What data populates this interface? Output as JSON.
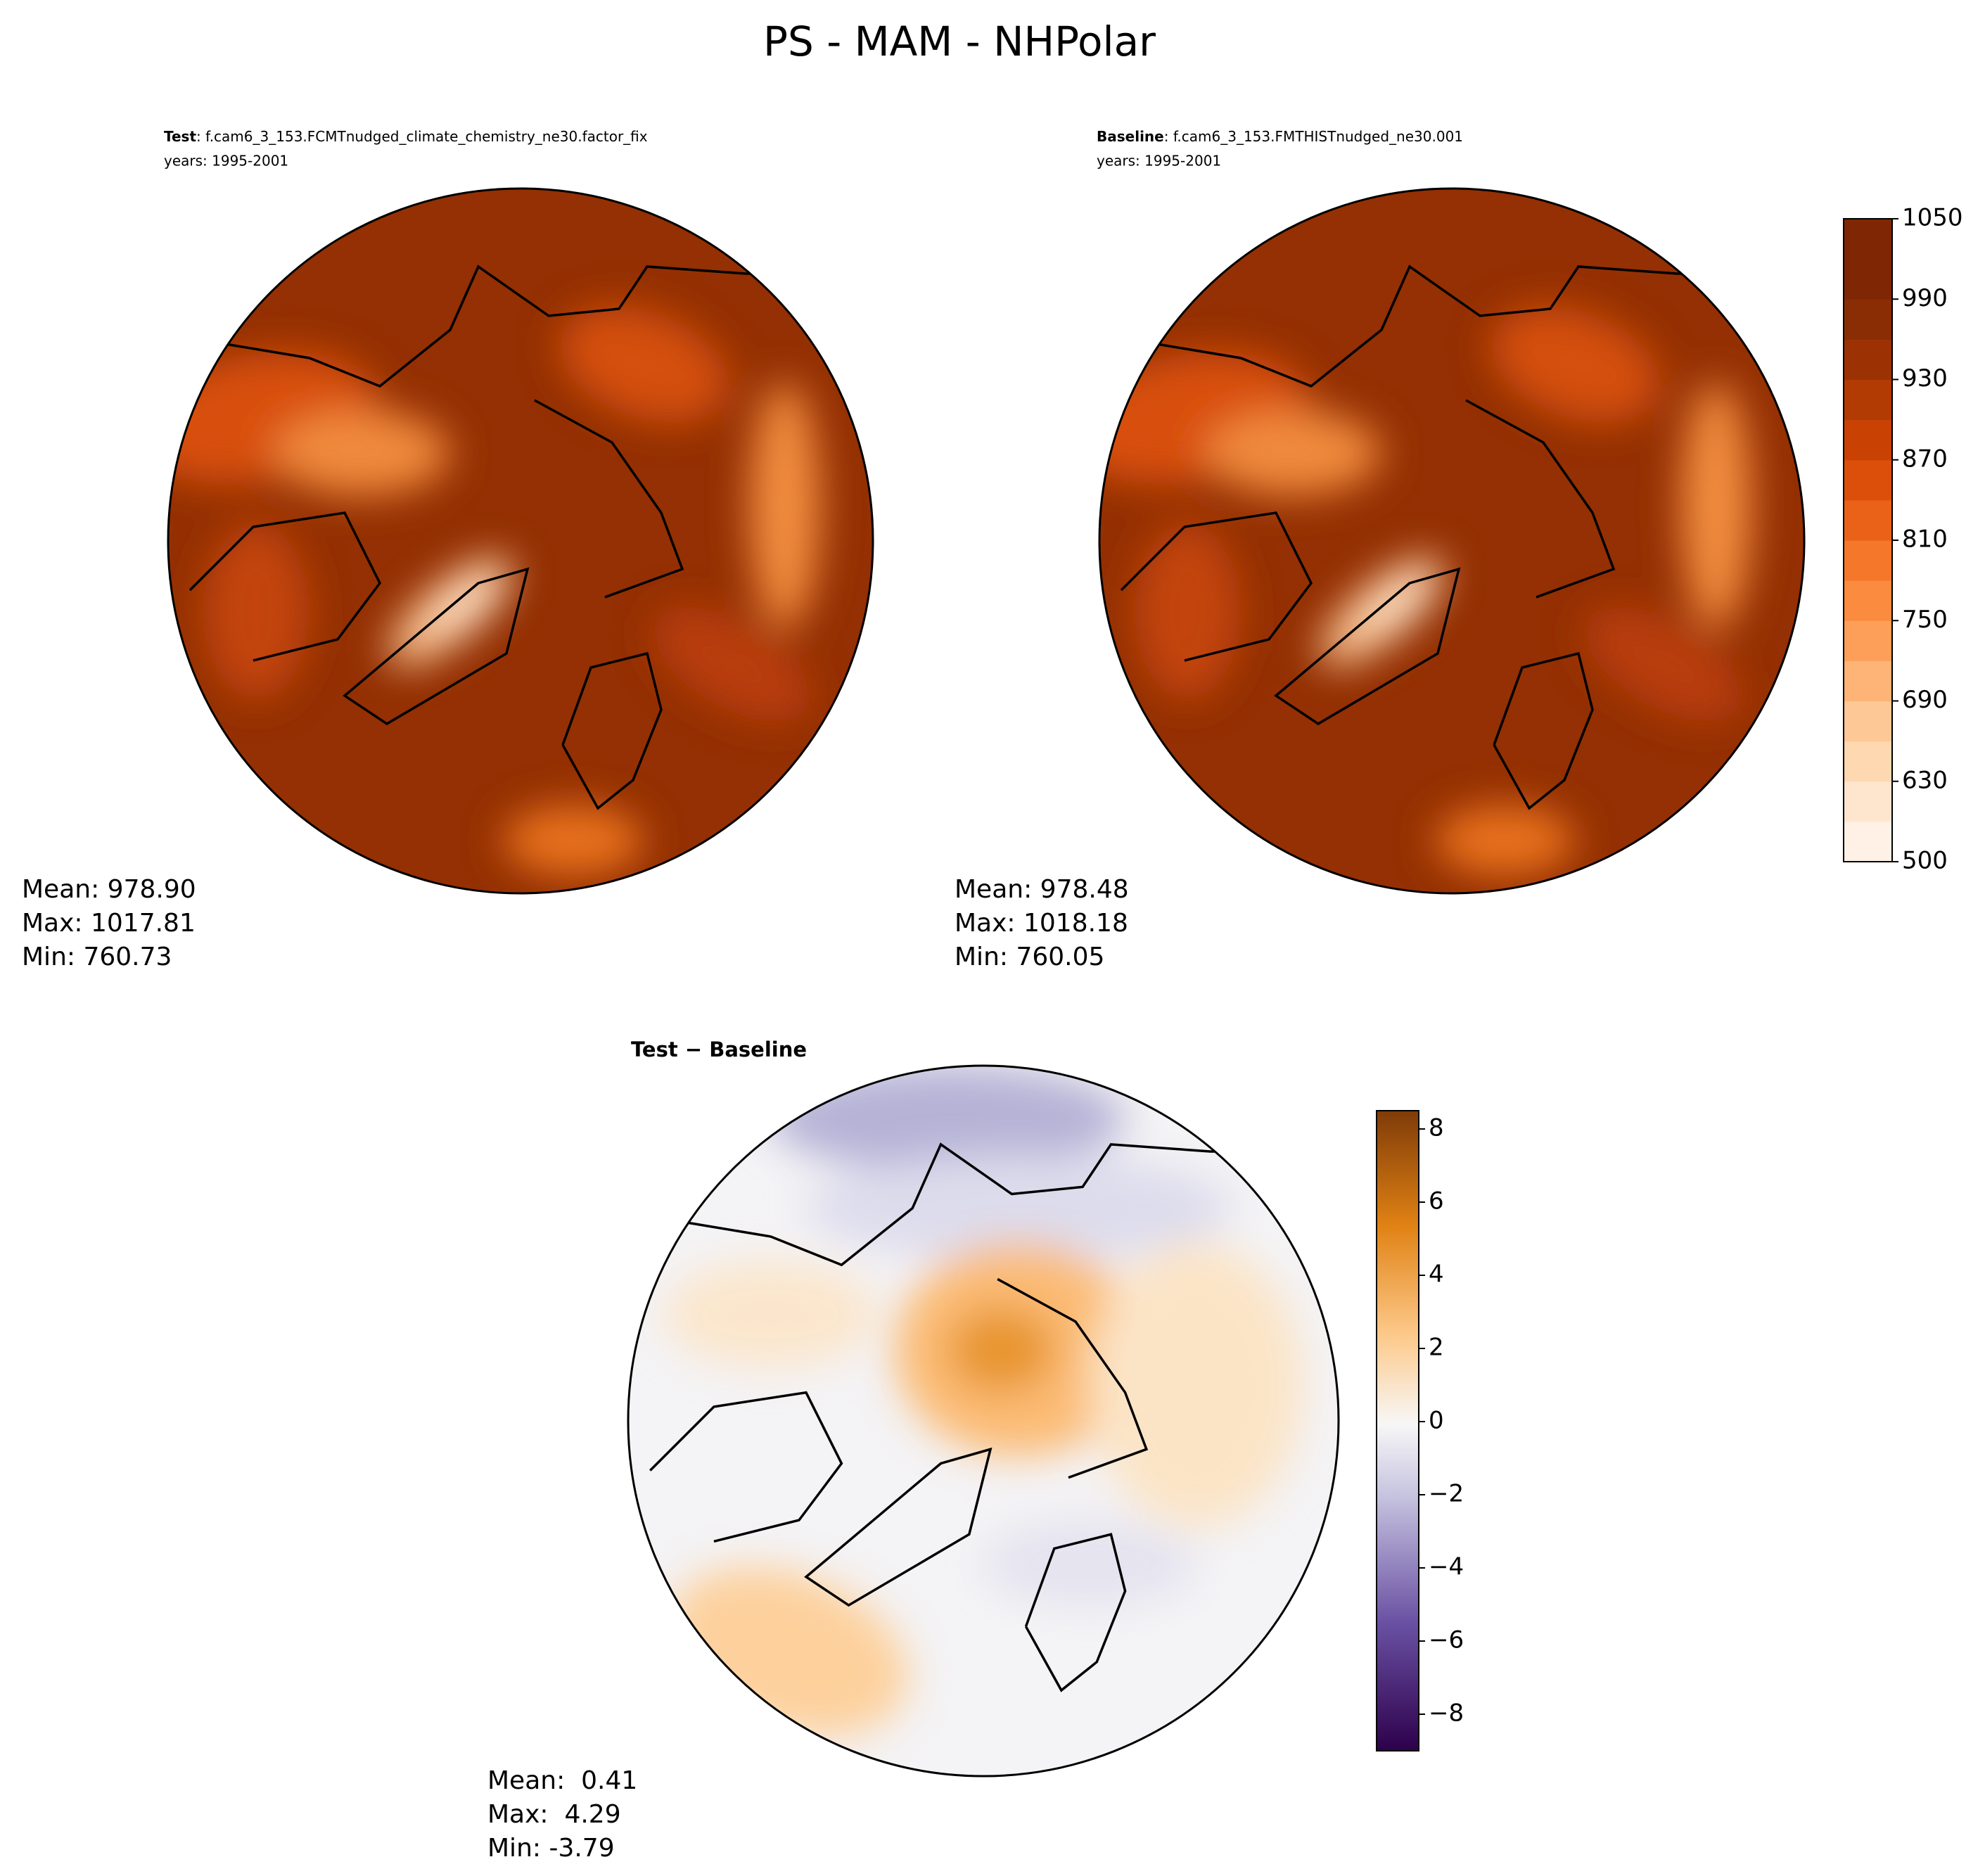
{
  "title": "PS - MAM - NHPolar",
  "panels": [
    {
      "label": "Test",
      "case": ": f.cam6_3_153.FCMTnudged_climate_chemistry_ne30.factor_fix",
      "years": "years: 1995-2001",
      "stats": [
        "Mean: 978.90",
        "Max: 1017.81",
        "Min: 760.73"
      ]
    },
    {
      "label": "Baseline",
      "case": ": f.cam6_3_153.FMTHISTnudged_ne30.001",
      "years": "years: 1995-2001",
      "stats": [
        "Mean: 978.48",
        "Max: 1018.18",
        "Min: 760.05"
      ]
    },
    {
      "title": "Test − Baseline",
      "stats": [
        "Mean:  0.41",
        "Max:  4.29",
        "Min: -3.79"
      ]
    }
  ],
  "colorbars": [
    {
      "ticks": [
        500,
        630,
        690,
        750,
        810,
        870,
        930,
        990,
        1050
      ]
    },
    {
      "lim": [
        -9,
        8.5
      ],
      "ticks": [
        {
          "value": -8,
          "label": "−8"
        },
        {
          "value": -6,
          "label": "−6"
        },
        {
          "value": -4,
          "label": "−4"
        },
        {
          "value": -2,
          "label": "−2"
        },
        0,
        2,
        4,
        6,
        8
      ]
    }
  ]
}
